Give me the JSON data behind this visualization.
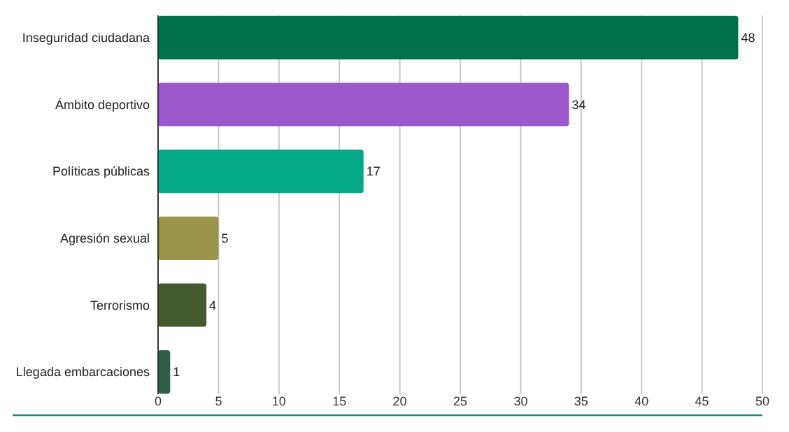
{
  "chart_data": {
    "type": "bar",
    "orientation": "horizontal",
    "categories": [
      "Inseguridad ciudadana",
      "Ámbito deportivo",
      "Políticas públicas",
      "Agresión sexual",
      "Terrorismo",
      "Llegada embarcaciones"
    ],
    "values": [
      48,
      34,
      17,
      5,
      4,
      1
    ],
    "colors": [
      "#00704a",
      "#9b57cc",
      "#05a888",
      "#9a954a",
      "#445a2f",
      "#2f5e46"
    ],
    "xlim": [
      0,
      50
    ],
    "xticks": [
      0,
      5,
      10,
      15,
      20,
      25,
      30,
      35,
      40,
      45,
      50
    ],
    "grid": "x",
    "data_labels": true
  }
}
